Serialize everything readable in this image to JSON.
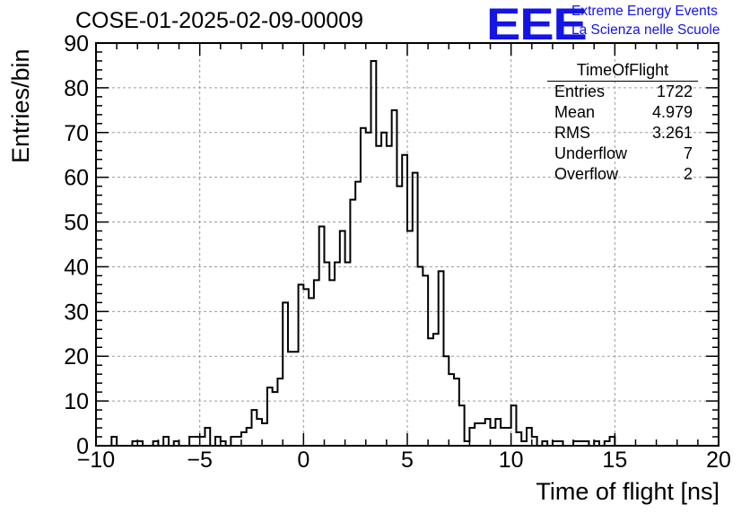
{
  "title": "COSE-01-2025-02-09-00009",
  "logo": {
    "mark": "EEE",
    "line1": "Extreme Energy Events",
    "line2": "La Scienza nelle Scuole",
    "color": "#1414e6"
  },
  "stats": {
    "title": "TimeOfFlight",
    "rows": [
      {
        "label": "Entries",
        "value": "1722"
      },
      {
        "label": "Mean",
        "value": "4.979"
      },
      {
        "label": "RMS",
        "value": "3.261"
      },
      {
        "label": "Underflow",
        "value": "7"
      },
      {
        "label": "Overflow",
        "value": "2"
      }
    ]
  },
  "chart_data": {
    "type": "bar",
    "style": "step-histogram",
    "title": "COSE-01-2025-02-09-00009",
    "xlabel": "Time of flight [ns]",
    "ylabel": "Entries/bin",
    "xlim": [
      -10,
      20
    ],
    "ylim": [
      0,
      90
    ],
    "bin_width": 0.25,
    "grid": true,
    "line_color": "#000000",
    "x_ticks": [
      -10,
      -5,
      0,
      5,
      10,
      15,
      20
    ],
    "y_ticks": [
      0,
      10,
      20,
      30,
      40,
      50,
      60,
      70,
      80,
      90
    ],
    "values": [
      0,
      0,
      0,
      2,
      0,
      0,
      0,
      1,
      1,
      0,
      0,
      1,
      0,
      2,
      0,
      1,
      0,
      0,
      2,
      2,
      2,
      4,
      0,
      2,
      1,
      0,
      2,
      2,
      3,
      4,
      8,
      6,
      5,
      13,
      12,
      15,
      32,
      21,
      21,
      36,
      35,
      33,
      37,
      49,
      41,
      37,
      41,
      48,
      41,
      55,
      59,
      71,
      70,
      86,
      67,
      70,
      67,
      75,
      58,
      65,
      48,
      61,
      40,
      38,
      24,
      25,
      39,
      20,
      16,
      15,
      9,
      1,
      4,
      5,
      5,
      6,
      4,
      6,
      4,
      4,
      9,
      3,
      1,
      4,
      2,
      0,
      1,
      0,
      1,
      1,
      0,
      0,
      1,
      1,
      1,
      0,
      1,
      0,
      1,
      2,
      0,
      0,
      0,
      0,
      0,
      0,
      0,
      0,
      0,
      0,
      0,
      0,
      0,
      0,
      0,
      0,
      0,
      0,
      0,
      0
    ]
  }
}
